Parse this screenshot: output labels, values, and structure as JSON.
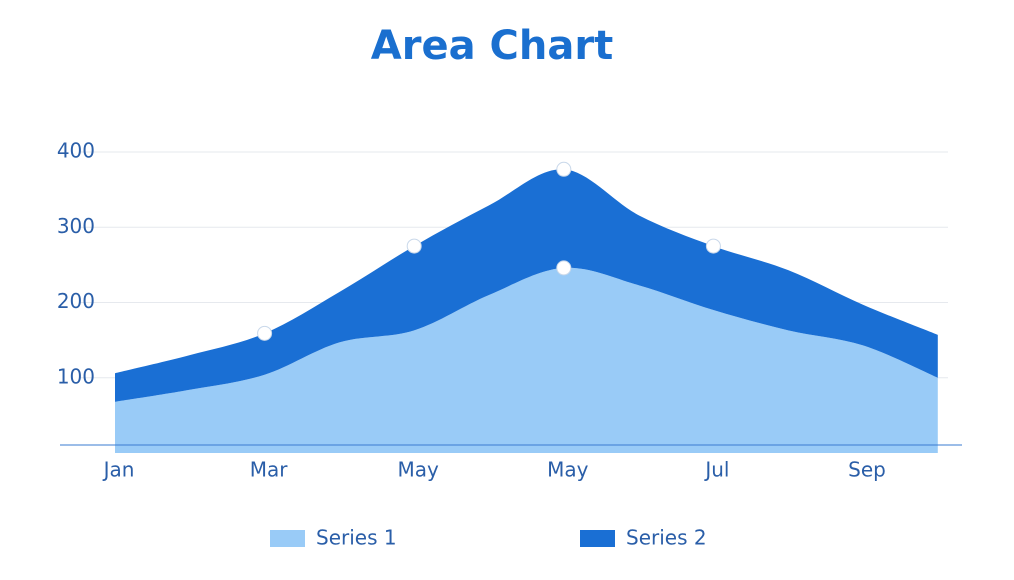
{
  "chart_data": {
    "type": "area",
    "title": "Area Chart",
    "categories": [
      "Jan",
      null,
      "Mar",
      null,
      "May",
      null,
      "May",
      null,
      "Jul",
      null,
      "Sep",
      null
    ],
    "stacked": true,
    "series": [
      {
        "name": "Series 1",
        "color": "#99cbf7",
        "values": [
          68,
          84,
          104,
          147,
          163,
          210,
          246,
          223,
          190,
          163,
          143,
          100
        ]
      },
      {
        "name": "Series 2",
        "color": "#1a6fd4",
        "values": [
          38,
          46,
          55,
          67,
          112,
          119,
          131,
          93,
          85,
          80,
          54,
          57
        ]
      }
    ],
    "ylim": [
      0,
      400
    ],
    "yticks": [
      100,
      200,
      300,
      400
    ],
    "grid": true
  }
}
